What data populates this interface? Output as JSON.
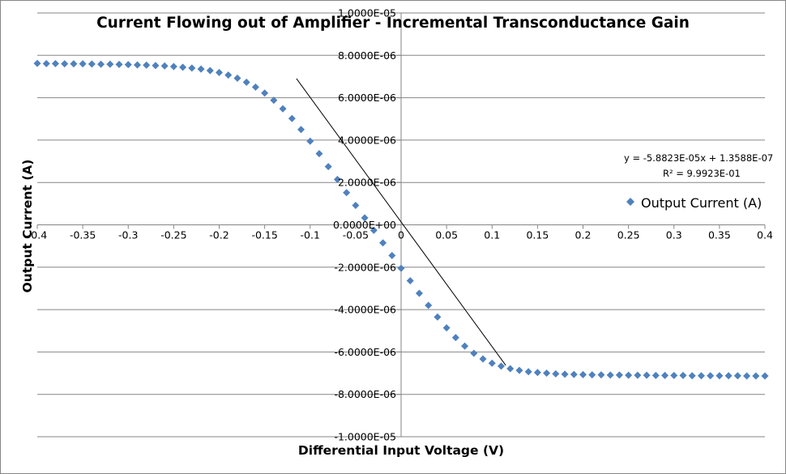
{
  "chart_data": {
    "type": "scatter",
    "title": "Current Flowing out of Amplifier - Incremental Transconductance Gain",
    "xlabel": "Differential Input Voltage  (V)",
    "ylabel": "Output Current  (A)",
    "xlim": [
      -0.4,
      0.4
    ],
    "ylim": [
      -1e-05,
      1e-05
    ],
    "x_ticks": [
      -0.4,
      -0.35,
      -0.3,
      -0.25,
      -0.2,
      -0.15,
      -0.1,
      -0.05,
      0,
      0.05,
      0.1,
      0.15,
      0.2,
      0.25,
      0.3,
      0.35,
      0.4
    ],
    "x_tick_labels": [
      "-0.4",
      "-0.35",
      "-0.3",
      "-0.25",
      "-0.2",
      "-0.15",
      "-0.1",
      "-0.05",
      "0",
      "0.05",
      "0.1",
      "0.15",
      "0.2",
      "0.25",
      "0.3",
      "0.35",
      "0.4"
    ],
    "y_ticks": [
      1e-05,
      8e-06,
      6e-06,
      4e-06,
      2e-06,
      0,
      -2e-06,
      -4e-06,
      -6e-06,
      -8e-06,
      -1e-05
    ],
    "y_tick_labels": [
      "1.0000E-05",
      "8.0000E-06",
      "6.0000E-06",
      "4.0000E-06",
      "2.0000E-06",
      "0.0000E+00",
      "-2.0000E-06",
      "-4.0000E-06",
      "-6.0000E-06",
      "-8.0000E-06",
      "-1.0000E-05"
    ],
    "grid": "horizontal",
    "legend_position": "right",
    "series": [
      {
        "name": "Output Current (A)",
        "color": "#4F81BD",
        "marker": "diamond",
        "x": [
          -0.4,
          -0.39,
          -0.38,
          -0.37,
          -0.36,
          -0.35,
          -0.34,
          -0.33,
          -0.32,
          -0.31,
          -0.3,
          -0.29,
          -0.28,
          -0.27,
          -0.26,
          -0.25,
          -0.24,
          -0.23,
          -0.22,
          -0.21,
          -0.2,
          -0.19,
          -0.18,
          -0.17,
          -0.16,
          -0.15,
          -0.14,
          -0.13,
          -0.12,
          -0.11,
          -0.1,
          -0.09,
          -0.08,
          -0.07,
          -0.06,
          -0.05,
          -0.04,
          -0.03,
          -0.02,
          -0.01,
          0,
          0.01,
          0.02,
          0.03,
          0.04,
          0.05,
          0.06,
          0.07,
          0.08,
          0.09,
          0.1,
          0.11,
          0.12,
          0.13,
          0.14,
          0.15,
          0.16,
          0.17,
          0.18,
          0.19,
          0.2,
          0.21,
          0.22,
          0.23,
          0.24,
          0.25,
          0.26,
          0.27,
          0.28,
          0.29,
          0.3,
          0.31,
          0.32,
          0.33,
          0.34,
          0.35,
          0.36,
          0.37,
          0.38,
          0.39,
          0.4
        ],
        "y": [
          7.62e-06,
          7.61e-06,
          7.61e-06,
          7.6e-06,
          7.6e-06,
          7.6e-06,
          7.59e-06,
          7.58e-06,
          7.58e-06,
          7.57e-06,
          7.56e-06,
          7.55e-06,
          7.54e-06,
          7.52e-06,
          7.5e-06,
          7.47e-06,
          7.44e-06,
          7.4e-06,
          7.35e-06,
          7.28e-06,
          7.19e-06,
          7.07e-06,
          6.92e-06,
          6.73e-06,
          6.5e-06,
          6.22e-06,
          5.88e-06,
          5.48e-06,
          5.02e-06,
          4.5e-06,
          3.95e-06,
          3.36e-06,
          2.75e-06,
          2.14e-06,
          1.52e-06,
          9.2e-07,
          3.3e-07,
          -2.6e-07,
          -8.5e-07,
          -1.45e-06,
          -2.05e-06,
          -2.64e-06,
          -3.23e-06,
          -3.8e-06,
          -4.35e-06,
          -4.86e-06,
          -5.32e-06,
          -5.72e-06,
          -6.06e-06,
          -6.33e-06,
          -6.53e-06,
          -6.67e-06,
          -6.79e-06,
          -6.87e-06,
          -6.93e-06,
          -6.97e-06,
          -7e-06,
          -7.03e-06,
          -7.05e-06,
          -7.06e-06,
          -7.07e-06,
          -7.08e-06,
          -7.08e-06,
          -7.09e-06,
          -7.09e-06,
          -7.1e-06,
          -7.1e-06,
          -7.1e-06,
          -7.11e-06,
          -7.11e-06,
          -7.11e-06,
          -7.11e-06,
          -7.12e-06,
          -7.12e-06,
          -7.12e-06,
          -7.12e-06,
          -7.12e-06,
          -7.12e-06,
          -7.13e-06,
          -7.13e-06,
          -7.13e-06
        ]
      }
    ],
    "trendline": {
      "type": "linear",
      "x_range": [
        -0.115,
        0.115
      ],
      "slope": -5.8823e-05,
      "intercept": 1.3588e-07,
      "color": "#000000",
      "equation_label": "y = -5.8823E-05x + 1.3588E-07",
      "r2_label": "R² = 9.9923E-01"
    }
  }
}
